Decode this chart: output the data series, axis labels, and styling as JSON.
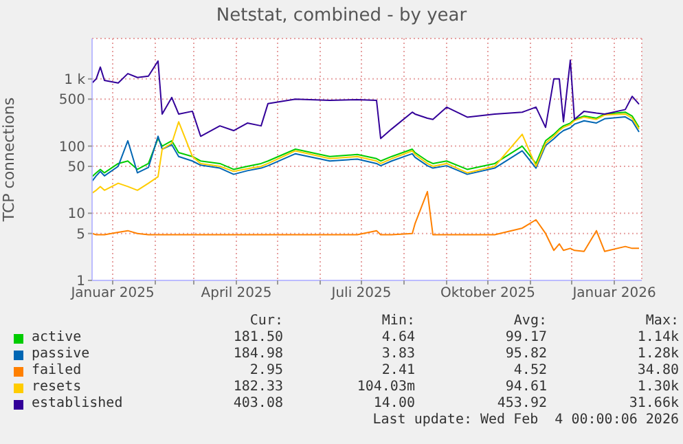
{
  "chart_data": {
    "type": "line",
    "title": "Netstat, combined - by year",
    "ylabel": "TCP connections",
    "log": "y",
    "grid": true,
    "legend": "bottom",
    "marker": "none",
    "line_style": "solid",
    "xlim": [
      "2024-12-17",
      "2026-01-21"
    ],
    "xticks": [
      {
        "value": "2025-01-01",
        "label": "Januar 2025"
      },
      {
        "value": "2025-02-01",
        "label": null
      },
      {
        "value": "2025-03-01",
        "label": null
      },
      {
        "value": "2025-04-01",
        "label": "April 2025"
      },
      {
        "value": "2025-05-01",
        "label": null
      },
      {
        "value": "2025-06-01",
        "label": null
      },
      {
        "value": "2025-07-01",
        "label": "Juli 2025"
      },
      {
        "value": "2025-08-01",
        "label": null
      },
      {
        "value": "2025-09-01",
        "label": null
      },
      {
        "value": "2025-10-01",
        "label": "Oktober 2025"
      },
      {
        "value": "2025-11-01",
        "label": null
      },
      {
        "value": "2025-12-01",
        "label": null
      },
      {
        "value": "2026-01-01",
        "label": "Januar 2026"
      }
    ],
    "ylim": [
      1,
      4000
    ],
    "yticks": [
      1,
      5,
      10,
      50,
      100,
      500,
      {
        "value": 1000,
        "label": "1 k"
      }
    ],
    "x": [
      "2024-12-17",
      "2024-12-20",
      "2024-12-23",
      "2024-12-26",
      "2025-01-05",
      "2025-01-12",
      "2025-01-19",
      "2025-01-27",
      "2025-02-03",
      "2025-02-06",
      "2025-02-13",
      "2025-02-18",
      "2025-02-28",
      "2025-03-06",
      "2025-03-20",
      "2025-03-30",
      "2025-04-09",
      "2025-04-19",
      "2025-04-24",
      "2025-05-14",
      "2025-06-08",
      "2025-06-28",
      "2025-07-12",
      "2025-07-15",
      "2025-07-23",
      "2025-08-07",
      "2025-08-09",
      "2025-08-18",
      "2025-08-22",
      "2025-09-01",
      "2025-09-16",
      "2025-10-06",
      "2025-10-26",
      "2025-11-05",
      "2025-11-12",
      "2025-11-18",
      "2025-11-22",
      "2025-11-25",
      "2025-11-30",
      "2025-12-03",
      "2025-12-10",
      "2025-12-19",
      "2025-12-25",
      "2026-01-09",
      "2026-01-14",
      "2026-01-19"
    ],
    "series": [
      {
        "name": "active",
        "color": "#00cc00",
        "values": [
          35,
          40,
          45,
          40,
          55,
          60,
          45,
          55,
          130,
          100,
          120,
          80,
          70,
          60,
          55,
          45,
          50,
          55,
          60,
          90,
          70,
          75,
          65,
          60,
          70,
          90,
          80,
          60,
          55,
          60,
          45,
          55,
          100,
          55,
          120,
          150,
          180,
          200,
          220,
          250,
          280,
          260,
          300,
          320,
          280,
          190
        ]
      },
      {
        "name": "passive",
        "color": "#0066b3",
        "values": [
          30,
          36,
          42,
          36,
          50,
          120,
          40,
          48,
          140,
          90,
          105,
          70,
          60,
          52,
          47,
          38,
          43,
          47,
          51,
          77,
          60,
          64,
          55,
          51,
          60,
          77,
          68,
          51,
          47,
          51,
          38,
          47,
          85,
          47,
          102,
          128,
          153,
          170,
          187,
          212,
          238,
          221,
          255,
          272,
          238,
          162
        ]
      },
      {
        "name": "failed",
        "color": "#ff8000",
        "values": [
          5,
          4.8,
          4.8,
          4.8,
          5.2,
          5.5,
          5,
          4.8,
          4.8,
          4.8,
          4.8,
          4.8,
          4.8,
          4.8,
          4.8,
          4.8,
          4.8,
          4.8,
          4.8,
          4.8,
          4.8,
          4.8,
          5.5,
          4.8,
          4.8,
          5,
          7,
          21,
          4.8,
          4.8,
          4.8,
          4.8,
          6,
          8,
          5,
          2.8,
          3.5,
          2.8,
          3,
          2.8,
          2.7,
          5.5,
          2.7,
          3.2,
          3,
          3
        ]
      },
      {
        "name": "resets",
        "color": "#ffcc00",
        "values": [
          20,
          22,
          25,
          22,
          28,
          25,
          22,
          28,
          35,
          90,
          110,
          230,
          70,
          55,
          50,
          42,
          46,
          50,
          55,
          85,
          65,
          70,
          60,
          55,
          65,
          85,
          75,
          55,
          50,
          55,
          40,
          50,
          150,
          50,
          110,
          140,
          170,
          190,
          210,
          240,
          270,
          250,
          290,
          300,
          260,
          180
        ]
      },
      {
        "name": "established",
        "color": "#330099",
        "values": [
          870,
          1000,
          1500,
          950,
          870,
          1200,
          1050,
          1100,
          1850,
          300,
          530,
          300,
          330,
          140,
          200,
          170,
          220,
          200,
          430,
          500,
          480,
          490,
          480,
          130,
          180,
          320,
          300,
          260,
          250,
          380,
          270,
          300,
          320,
          380,
          190,
          1000,
          1000,
          230,
          1900,
          250,
          330,
          310,
          300,
          350,
          550,
          420
        ]
      }
    ],
    "annotations": [
      "Cur:",
      "Min:",
      "Avg:",
      "Max:",
      "181.50",
      "4.64",
      "99.17",
      "1.14k",
      "184.98",
      "3.83",
      "95.82",
      "1.28k",
      "2.95",
      "2.41",
      "4.52",
      "34.80",
      "182.33",
      "104.03m",
      "94.61",
      "1.30k",
      "403.08",
      "14.00",
      "453.92",
      "31.66k",
      "Last update: Wed Feb  4 00:00:06 2026"
    ]
  }
}
